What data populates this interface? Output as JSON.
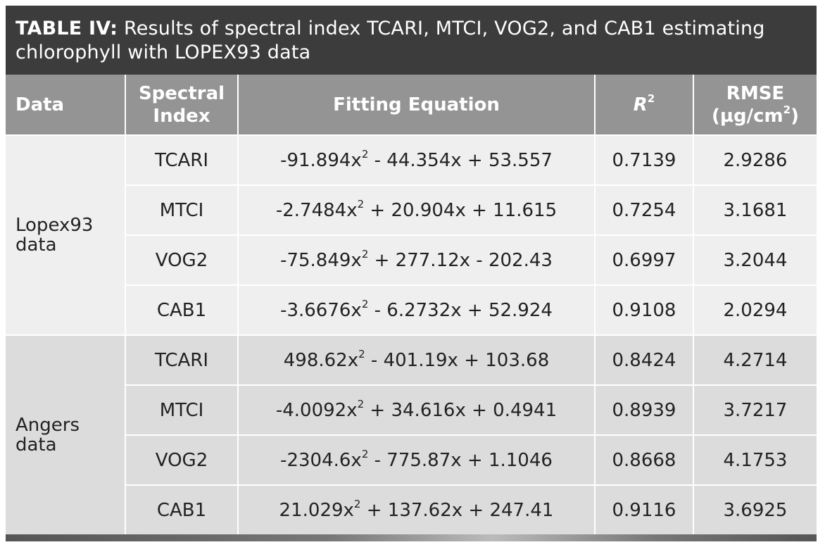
{
  "title": {
    "lead": "TABLE IV:",
    "text": " Results of spectral index TCARI, MTCI, VOG2, and CAB1 estimating chlorophyll with LOPEX93 data"
  },
  "headers": {
    "data": "Data",
    "index_line1": "Spectral",
    "index_line2": "Index",
    "equation": "Fitting Equation",
    "r2_base": "R",
    "r2_sup": "2",
    "rmse_line1": "RMSE",
    "rmse_line2_pre": "(µg/cm",
    "rmse_line2_sup": "2",
    "rmse_line2_post": ")"
  },
  "groups": [
    {
      "name_line1": "Lopex93",
      "name_line2": "data",
      "rows": [
        {
          "index": "TCARI",
          "eq_a": "-91.894x",
          "eq_b": " - 44.354x + 53.557",
          "r2": "0.7139",
          "rmse": "2.9286"
        },
        {
          "index": "MTCI",
          "eq_a": "-2.7484x",
          "eq_b": " + 20.904x + 11.615",
          "r2": "0.7254",
          "rmse": "3.1681"
        },
        {
          "index": "VOG2",
          "eq_a": "-75.849x",
          "eq_b": " + 277.12x - 202.43",
          "r2": "0.6997",
          "rmse": "3.2044"
        },
        {
          "index": "CAB1",
          "eq_a": "-3.6676x",
          "eq_b": " - 6.2732x + 52.924",
          "r2": "0.9108",
          "rmse": "2.0294"
        }
      ]
    },
    {
      "name_line1": "Angers",
      "name_line2": "data",
      "rows": [
        {
          "index": "TCARI",
          "eq_a": "498.62x",
          "eq_b": " - 401.19x + 103.68",
          "r2": "0.8424",
          "rmse": "4.2714"
        },
        {
          "index": "MTCI",
          "eq_a": "-4.0092x",
          "eq_b": " + 34.616x + 0.4941",
          "r2": "0.8939",
          "rmse": "3.7217"
        },
        {
          "index": "VOG2",
          "eq_a": "-2304.6x",
          "eq_b": " - 775.87x + 1.1046",
          "r2": "0.8668",
          "rmse": "4.1753"
        },
        {
          "index": "CAB1",
          "eq_a": "21.029x",
          "eq_b": " + 137.62x + 247.41",
          "r2": "0.9116",
          "rmse": "3.6925"
        }
      ]
    }
  ],
  "exponent": "2"
}
